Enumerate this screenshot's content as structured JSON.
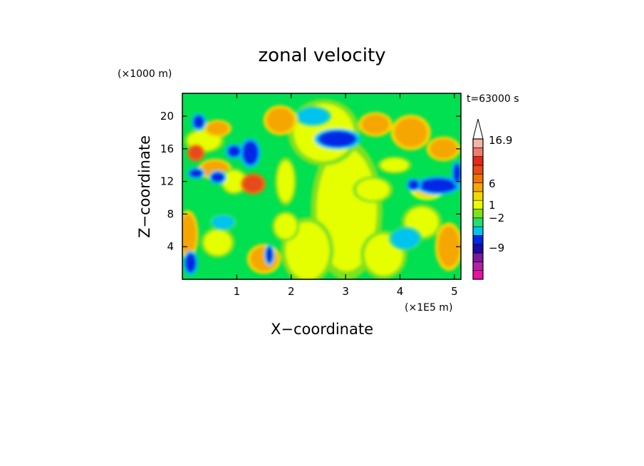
{
  "chart_data": {
    "type": "heatmap",
    "title": "zonal velocity",
    "xlabel": "X−coordinate",
    "ylabel": "Z−coordinate",
    "x_units": "(×1E5 m)",
    "y_units": "(×1000 m)",
    "time_label": "t=63000 s",
    "xlim": [
      0.0,
      5.12
    ],
    "ylim": [
      0.0,
      22.8
    ],
    "x_ticks": [
      1,
      2,
      3,
      4,
      5
    ],
    "y_ticks": [
      4,
      8,
      12,
      16,
      20
    ],
    "colorbar": {
      "labels": [
        {
          "text": "16.9",
          "value": 16.9
        },
        {
          "text": "6",
          "value": 6
        },
        {
          "text": "1",
          "value": 1
        },
        {
          "text": "−2",
          "value": -2
        },
        {
          "text": "−9",
          "value": -9
        }
      ],
      "levels": [
        {
          "color": "#e6119e"
        },
        {
          "color": "#b31fa6"
        },
        {
          "color": "#7a1a9c"
        },
        {
          "color": "#1a0aa6"
        },
        {
          "color": "#0028e6"
        },
        {
          "color": "#00c3f0"
        },
        {
          "color": "#22e06a"
        },
        {
          "color": "#7fe21e"
        },
        {
          "color": "#e6ff00"
        },
        {
          "color": "#f5d800"
        },
        {
          "color": "#f5a600"
        },
        {
          "color": "#f07500"
        },
        {
          "color": "#e64a1a"
        },
        {
          "color": "#e62814"
        },
        {
          "color": "#f07b70"
        },
        {
          "color": "#f5b4a6"
        },
        {
          "color": "#ffffff"
        }
      ]
    },
    "field": {
      "background": "#00e050",
      "blobs": [
        {
          "x": 3.02,
          "z": 8.5,
          "rx": 0.55,
          "rz": 7.5,
          "level": "yellow"
        },
        {
          "x": 2.6,
          "z": 18.0,
          "rx": 0.55,
          "rz": 3.5,
          "level": "yellow"
        },
        {
          "x": 2.3,
          "z": 3.5,
          "rx": 0.4,
          "rz": 3.5,
          "level": "yellow"
        },
        {
          "x": 3.7,
          "z": 3.0,
          "rx": 0.35,
          "rz": 2.5,
          "level": "yellow"
        },
        {
          "x": 4.2,
          "z": 18.0,
          "rx": 0.3,
          "rz": 1.8,
          "level": "orange"
        },
        {
          "x": 3.55,
          "z": 19.0,
          "rx": 0.25,
          "rz": 1.2,
          "level": "orange"
        },
        {
          "x": 4.5,
          "z": 11.0,
          "rx": 0.25,
          "rz": 1.0,
          "level": "light-orange"
        },
        {
          "x": 2.4,
          "z": 20.0,
          "rx": 0.28,
          "rz": 1.0,
          "level": "cyan"
        },
        {
          "x": 2.85,
          "z": 17.2,
          "rx": 0.35,
          "rz": 1.0,
          "level": "blue"
        },
        {
          "x": 4.7,
          "z": 11.5,
          "rx": 0.35,
          "rz": 0.9,
          "level": "blue"
        },
        {
          "x": 4.25,
          "z": 11.6,
          "rx": 0.1,
          "rz": 0.6,
          "level": "blue"
        },
        {
          "x": 0.4,
          "z": 17.0,
          "rx": 0.3,
          "rz": 1.2,
          "level": "yellow"
        },
        {
          "x": 0.65,
          "z": 18.5,
          "rx": 0.2,
          "rz": 0.8,
          "level": "orange"
        },
        {
          "x": 0.25,
          "z": 15.5,
          "rx": 0.12,
          "rz": 0.8,
          "level": "red"
        },
        {
          "x": 0.6,
          "z": 13.5,
          "rx": 0.25,
          "rz": 1.0,
          "level": "orange"
        },
        {
          "x": 0.95,
          "z": 12.0,
          "rx": 0.2,
          "rz": 1.3,
          "level": "yellow"
        },
        {
          "x": 1.3,
          "z": 11.7,
          "rx": 0.18,
          "rz": 1.0,
          "level": "red"
        },
        {
          "x": 1.25,
          "z": 15.5,
          "rx": 0.15,
          "rz": 1.5,
          "level": "blue"
        },
        {
          "x": 0.95,
          "z": 15.7,
          "rx": 0.12,
          "rz": 0.7,
          "level": "blue"
        },
        {
          "x": 0.3,
          "z": 19.3,
          "rx": 0.1,
          "rz": 0.8,
          "level": "blue"
        },
        {
          "x": 0.25,
          "z": 13.0,
          "rx": 0.12,
          "rz": 0.5,
          "level": "blue"
        },
        {
          "x": 0.65,
          "z": 12.5,
          "rx": 0.12,
          "rz": 0.6,
          "level": "blue"
        },
        {
          "x": 0.1,
          "z": 5.5,
          "rx": 0.15,
          "rz": 2.5,
          "level": "orange"
        },
        {
          "x": 0.15,
          "z": 2.0,
          "rx": 0.1,
          "rz": 1.2,
          "level": "blue"
        },
        {
          "x": 0.65,
          "z": 4.5,
          "rx": 0.25,
          "rz": 1.5,
          "level": "yellow"
        },
        {
          "x": 0.75,
          "z": 7.0,
          "rx": 0.2,
          "rz": 0.8,
          "level": "cyan"
        },
        {
          "x": 1.5,
          "z": 2.5,
          "rx": 0.25,
          "rz": 1.5,
          "level": "orange"
        },
        {
          "x": 1.6,
          "z": 3.0,
          "rx": 0.06,
          "rz": 1.0,
          "level": "blue"
        },
        {
          "x": 1.9,
          "z": 12.0,
          "rx": 0.15,
          "rz": 2.5,
          "level": "yellow"
        },
        {
          "x": 1.9,
          "z": 6.5,
          "rx": 0.2,
          "rz": 1.5,
          "level": "yellow"
        },
        {
          "x": 3.5,
          "z": 11.0,
          "rx": 0.3,
          "rz": 1.3,
          "level": "yellow"
        },
        {
          "x": 4.4,
          "z": 7.0,
          "rx": 0.3,
          "rz": 1.8,
          "level": "yellow"
        },
        {
          "x": 4.1,
          "z": 5.0,
          "rx": 0.25,
          "rz": 1.2,
          "level": "cyan"
        },
        {
          "x": 4.9,
          "z": 4.0,
          "rx": 0.2,
          "rz": 2.5,
          "level": "orange"
        },
        {
          "x": 4.8,
          "z": 16.0,
          "rx": 0.25,
          "rz": 1.2,
          "level": "orange"
        },
        {
          "x": 3.9,
          "z": 14.0,
          "rx": 0.25,
          "rz": 0.8,
          "level": "yellow"
        },
        {
          "x": 1.8,
          "z": 19.5,
          "rx": 0.25,
          "rz": 1.5,
          "level": "orange"
        },
        {
          "x": 5.05,
          "z": 13.0,
          "rx": 0.07,
          "rz": 1.2,
          "level": "blue"
        }
      ]
    }
  }
}
